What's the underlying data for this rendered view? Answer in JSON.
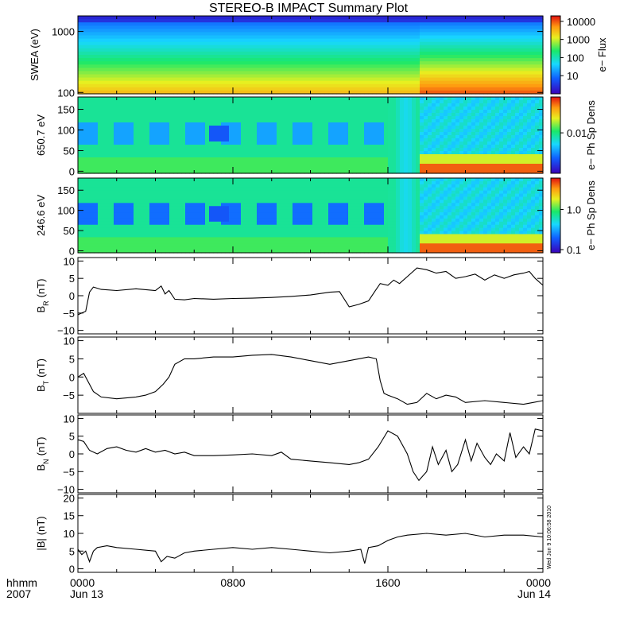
{
  "title": "STEREO-B IMPACT Summary Plot",
  "stamp": "Wed Jun  9 10:06:58 2010",
  "time_axis": {
    "row_label_1": "hhmm",
    "row_label_2": "2007",
    "ticks": [
      {
        "hours": 0,
        "label": "0000",
        "date": "Jun 13"
      },
      {
        "hours": 8,
        "label": "0800",
        "date": ""
      },
      {
        "hours": 16,
        "label": "1600",
        "date": ""
      },
      {
        "hours": 24,
        "label": "0000",
        "date": "Jun 14"
      }
    ],
    "range_hours": [
      0,
      24
    ]
  },
  "colors": {
    "line": "#000000",
    "frame": "#000000",
    "background": "#ffffff"
  },
  "chart_data": [
    {
      "type": "heatmap",
      "ylabel": "SWEA (eV)",
      "yscale": "log",
      "ylim": [
        95,
        1800
      ],
      "ytick_labels": [
        "100",
        "1000"
      ],
      "yticks": [
        100,
        1000
      ],
      "colorbar": {
        "label": "e− Flux",
        "scale": "log",
        "range": [
          1,
          20000
        ],
        "tick_labels": [
          "10",
          "100",
          "1000",
          "10000"
        ],
        "ticks": [
          10,
          100,
          1000,
          10000
        ]
      },
      "x_hours": [
        0,
        1.5,
        3,
        5,
        6.5,
        8,
        10,
        11.5,
        13,
        14.5,
        15.5,
        16.5,
        17.5,
        18.2,
        19,
        20,
        21,
        22,
        23,
        24
      ],
      "description_levels": "flux decreases with energy; enhanced low-energy flux after ~17.5 h"
    },
    {
      "type": "heatmap",
      "ylabel": "650.7 eV",
      "ylim": [
        -5,
        180
      ],
      "ytick_labels": [
        "0",
        "50",
        "100",
        "150"
      ],
      "yticks": [
        0,
        50,
        100,
        150
      ],
      "colorbar": {
        "label": "e− Ph Sp Dens",
        "scale": "log",
        "tick_labels": [
          "0.01"
        ],
        "ticks": [
          0.01
        ]
      }
    },
    {
      "type": "heatmap",
      "ylabel": "246.6 eV",
      "ylim": [
        -5,
        180
      ],
      "ytick_labels": [
        "0",
        "50",
        "100",
        "150"
      ],
      "yticks": [
        0,
        50,
        100,
        150
      ],
      "colorbar": {
        "label": "e− Ph Sp Dens",
        "scale": "log",
        "tick_labels": [
          "1.0",
          "0.1"
        ],
        "ticks": [
          1.0,
          0.1
        ]
      }
    },
    {
      "type": "line",
      "ylabel": "B",
      "ylabel_sub": "R",
      "ylabel_unit": "(nT)",
      "ylim": [
        -11,
        11
      ],
      "ytick_labels": [
        "10",
        "5",
        "0",
        "−5",
        "−10"
      ],
      "yticks": [
        10,
        5,
        0,
        -5,
        -10
      ],
      "x": [
        0,
        0.2,
        0.4,
        0.6,
        0.8,
        1.2,
        2,
        3,
        4,
        4.3,
        4.5,
        4.7,
        5,
        5.5,
        6,
        7,
        8,
        9,
        10,
        11,
        12,
        13,
        13.5,
        14,
        14.5,
        15,
        15.3,
        15.6,
        16,
        16.3,
        16.6,
        17,
        17.5,
        18,
        18.5,
        19,
        19.5,
        20,
        20.5,
        21,
        21.5,
        22,
        22.5,
        23,
        23.3,
        23.6,
        24
      ],
      "y": [
        -5.5,
        -5,
        -4.5,
        1,
        2.5,
        1.8,
        1.5,
        2,
        1.5,
        2.8,
        0.5,
        1.5,
        -1,
        -1.2,
        -0.8,
        -1,
        -0.8,
        -0.7,
        -0.5,
        -0.2,
        0.2,
        1,
        1.2,
        -3.2,
        -2.5,
        -1.5,
        1,
        3.5,
        3,
        4.5,
        3.5,
        5.5,
        8,
        7.5,
        6.5,
        7,
        5,
        5.5,
        6.2,
        4.5,
        6,
        5,
        6,
        6.5,
        7,
        5,
        3
      ]
    },
    {
      "type": "line",
      "ylabel": "B",
      "ylabel_sub": "T",
      "ylabel_unit": "(nT)",
      "ylim": [
        -10,
        11
      ],
      "ytick_labels": [
        "10",
        "5",
        "0",
        "−5"
      ],
      "yticks": [
        10,
        5,
        0,
        -5
      ],
      "x": [
        0,
        0.3,
        0.5,
        0.8,
        1.2,
        2,
        3,
        3.5,
        4,
        4.4,
        4.7,
        5,
        5.5,
        6,
        7,
        8,
        9,
        10,
        11,
        12,
        13,
        14,
        15,
        15.4,
        15.6,
        15.8,
        16,
        16.5,
        17,
        17.5,
        18,
        18.5,
        19,
        19.5,
        20,
        21,
        22,
        23,
        23.5,
        24
      ],
      "y": [
        0,
        1,
        -1,
        -4,
        -5.5,
        -6,
        -5.5,
        -5,
        -4,
        -2,
        0,
        3.5,
        5,
        5,
        5.5,
        5.5,
        6,
        6.2,
        5.5,
        4.5,
        3.5,
        4.5,
        5.5,
        5,
        -1,
        -4.5,
        -5,
        -6,
        -7.5,
        -7,
        -4.5,
        -6,
        -5,
        -5.5,
        -7,
        -6.5,
        -7,
        -7.5,
        -7,
        -6.5
      ]
    },
    {
      "type": "line",
      "ylabel": "B",
      "ylabel_sub": "N",
      "ylabel_unit": "(nT)",
      "ylim": [
        -11,
        11
      ],
      "ytick_labels": [
        "10",
        "5",
        "0",
        "−5",
        "−10"
      ],
      "yticks": [
        10,
        5,
        0,
        -5,
        -10
      ],
      "x": [
        0,
        0.3,
        0.6,
        1,
        1.5,
        2,
        2.5,
        3,
        3.5,
        4,
        4.5,
        5,
        5.5,
        6,
        7,
        8,
        9,
        10,
        10.5,
        11,
        12,
        13,
        14,
        14.5,
        15,
        15.5,
        16,
        16.5,
        17,
        17.3,
        17.6,
        18,
        18.3,
        18.6,
        19,
        19.3,
        19.6,
        20,
        20.3,
        20.6,
        21,
        21.3,
        21.6,
        22,
        22.3,
        22.6,
        23,
        23.3,
        23.6,
        24
      ],
      "y": [
        4,
        3.5,
        1,
        0,
        1.5,
        2,
        1,
        0.5,
        1.5,
        0.5,
        1,
        0,
        0.5,
        -0.5,
        -0.5,
        -0.3,
        0,
        -0.5,
        0.5,
        -1.5,
        -2,
        -2.5,
        -3,
        -2.5,
        -1.5,
        2,
        6.5,
        5,
        0,
        -5,
        -7.5,
        -5,
        2,
        -3,
        1,
        -5,
        -3,
        4,
        -2,
        3,
        -1,
        -3,
        0,
        -2,
        6,
        -1,
        2,
        0,
        7,
        6.5
      ]
    },
    {
      "type": "line",
      "ylabel": "|B|",
      "ylabel_unit": "(nT)",
      "ylim": [
        -1,
        21
      ],
      "ytick_labels": [
        "20",
        "15",
        "10",
        "5",
        "0"
      ],
      "yticks": [
        20,
        15,
        10,
        5,
        0
      ],
      "x": [
        0,
        0.2,
        0.4,
        0.6,
        0.8,
        1,
        1.5,
        2,
        3,
        4,
        4.3,
        4.6,
        5,
        5.5,
        6,
        7,
        8,
        9,
        10,
        11,
        12,
        13,
        14,
        14.6,
        14.8,
        15,
        15.5,
        16,
        16.5,
        17,
        18,
        19,
        20,
        21,
        22,
        23,
        24
      ],
      "y": [
        5.5,
        4,
        5,
        2,
        5,
        6,
        6.5,
        6,
        5.5,
        5,
        2,
        3.5,
        3,
        4.5,
        5,
        5.5,
        6,
        5.5,
        6,
        5.5,
        5,
        4.5,
        5,
        5.5,
        1.5,
        6,
        6.5,
        8,
        9,
        9.5,
        10,
        9.5,
        10,
        9,
        9.5,
        9.5,
        9
      ]
    }
  ]
}
